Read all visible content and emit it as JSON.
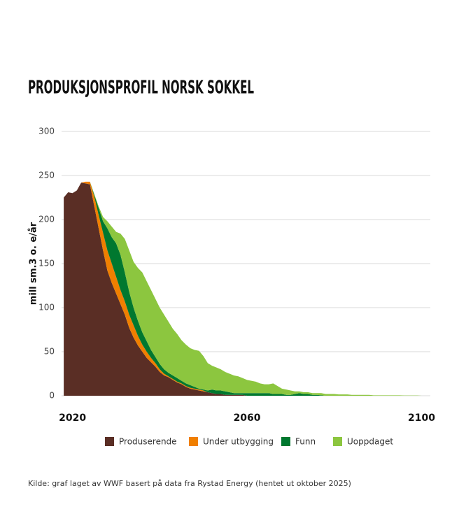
{
  "chart_data": {
    "type": "stacked_area",
    "title": "PRODUKSJONSPROFIL NORSK SOKKEL",
    "y_label": "mill sm.3 o. e/år",
    "source": "Kilde: graf laget av WWF basert på data fra Rystad Energy (hentet ut oktober 2025)",
    "x": [
      2018,
      2019,
      2020,
      2021,
      2022,
      2023,
      2024,
      2025,
      2026,
      2027,
      2028,
      2029,
      2030,
      2031,
      2032,
      2033,
      2034,
      2035,
      2036,
      2037,
      2038,
      2039,
      2040,
      2041,
      2042,
      2043,
      2044,
      2045,
      2046,
      2047,
      2048,
      2049,
      2050,
      2051,
      2052,
      2053,
      2054,
      2055,
      2056,
      2057,
      2058,
      2059,
      2060,
      2061,
      2062,
      2063,
      2064,
      2065,
      2066,
      2067,
      2068,
      2069,
      2070,
      2071,
      2072,
      2073,
      2074,
      2075,
      2076,
      2077,
      2078,
      2079,
      2080,
      2081,
      2082,
      2083,
      2084,
      2085,
      2086,
      2087,
      2088,
      2089,
      2090,
      2091,
      2092,
      2093,
      2094,
      2095,
      2096,
      2097,
      2098,
      2099,
      2100
    ],
    "series": [
      {
        "name": "Produserende",
        "color": "#5a2e25",
        "values": [
          225,
          231,
          230,
          233,
          242,
          241,
          240,
          215,
          190,
          165,
          142,
          128,
          116,
          104,
          92,
          77,
          66,
          57,
          50,
          43,
          38,
          33,
          27,
          23,
          21,
          18,
          15,
          13,
          10,
          8,
          7,
          6,
          5,
          4,
          3,
          2,
          2,
          1,
          1,
          1,
          1,
          1,
          0,
          0,
          0,
          0,
          0,
          0,
          0,
          0,
          0,
          0,
          0,
          0,
          0,
          0,
          0,
          0,
          0,
          0,
          0,
          0,
          0,
          0,
          0,
          0,
          0,
          0,
          0,
          0,
          0,
          0,
          0,
          0,
          0,
          0,
          0,
          0,
          0,
          0,
          0,
          0,
          0
        ]
      },
      {
        "name": "Under utbygging",
        "color": "#f07f00",
        "values": [
          0,
          0,
          0,
          0,
          0,
          2,
          3,
          11,
          15,
          20,
          23,
          22,
          19,
          16,
          15,
          15,
          14,
          11,
          8,
          7,
          5,
          4,
          3,
          2,
          1,
          1,
          1,
          1,
          1,
          1,
          1,
          1,
          1,
          0,
          0,
          0,
          0,
          0,
          0,
          0,
          0,
          0,
          0,
          0,
          0,
          0,
          0,
          0,
          0,
          0,
          0,
          0,
          0,
          0,
          0,
          0,
          0,
          0,
          0,
          0,
          0,
          0,
          0,
          0,
          0,
          0,
          0,
          0,
          0,
          0,
          0,
          0,
          0,
          0,
          0,
          0,
          0,
          0,
          0,
          0,
          0,
          0,
          0
        ]
      },
      {
        "name": "Funn",
        "color": "#00782f",
        "values": [
          0,
          0,
          0,
          0,
          0,
          0,
          0,
          2,
          8,
          13,
          25,
          30,
          38,
          40,
          33,
          26,
          20,
          17,
          14,
          12,
          9,
          7,
          6,
          5,
          4,
          4,
          4,
          3,
          3,
          3,
          2,
          1,
          1,
          2,
          4,
          4,
          4,
          4,
          3,
          2,
          2,
          2,
          3,
          3,
          3,
          3,
          3,
          3,
          2,
          2,
          2,
          1,
          1,
          2,
          3,
          2,
          2,
          1,
          1,
          0.5,
          0,
          0,
          0,
          0,
          0,
          0,
          0,
          0,
          0,
          0,
          0,
          0,
          0,
          0,
          0,
          0,
          0,
          0,
          0,
          0,
          0,
          0,
          0
        ]
      },
      {
        "name": "Uoppdaget",
        "color": "#8cc63f",
        "values": [
          0,
          0,
          0,
          0,
          0,
          0,
          0,
          1,
          2,
          5,
          8,
          12,
          13,
          24,
          38,
          47,
          52,
          60,
          68,
          68,
          68,
          66,
          64,
          62,
          58,
          53,
          50,
          46,
          44,
          42,
          42,
          43,
          38,
          31,
          27,
          26,
          24,
          22,
          21,
          20,
          19,
          17,
          15,
          14,
          13,
          11,
          10,
          10,
          12,
          9,
          6,
          6,
          5,
          3,
          2,
          2,
          2,
          2,
          2,
          2.5,
          2,
          2,
          2,
          1.5,
          1.5,
          1.5,
          1,
          1,
          1,
          1,
          1,
          0.5,
          0.5,
          0.5,
          0.5,
          0.5,
          0.5,
          0.5,
          0.3,
          0.3,
          0.3,
          0.3,
          0
        ]
      }
    ],
    "xlim": [
      2017.5,
      2102
    ],
    "xticks": [
      2020,
      2060,
      2100
    ],
    "ylim": [
      0,
      300
    ],
    "yticks": [
      0,
      50,
      100,
      150,
      200,
      250,
      300
    ],
    "grid": true
  }
}
